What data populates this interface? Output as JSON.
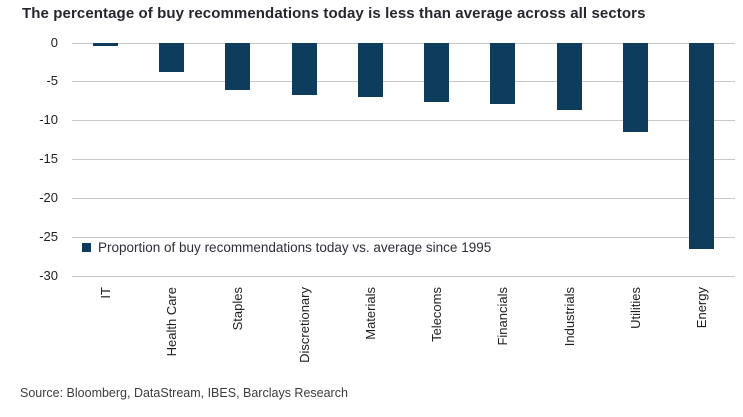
{
  "chart_data": {
    "type": "bar",
    "title": "The percentage of buy recommendations today is less than average across all sectors",
    "categories": [
      "IT",
      "Health Care",
      "Staples",
      "Discretionary",
      "Materials",
      "Telecoms",
      "Financials",
      "Industrials",
      "Utilities",
      "Energy"
    ],
    "values": [
      -0.5,
      -3.8,
      -6.1,
      -6.8,
      -7.0,
      -7.6,
      -7.9,
      -8.7,
      -11.5,
      -26.5
    ],
    "ylim": [
      -30,
      0
    ],
    "yticks": [
      0,
      -5,
      -10,
      -15,
      -20,
      -25,
      -30
    ],
    "xlabel": "",
    "ylabel": "",
    "grid": true,
    "legend": "Proportion of buy recommendations today vs. average since 1995",
    "legend_position": "inside-bottom-left",
    "source": "Source: Bloomberg, DataStream, IBES, Barclays Research",
    "bar_color": "#0d3c5c",
    "grid_color": "#c8c8c8"
  }
}
